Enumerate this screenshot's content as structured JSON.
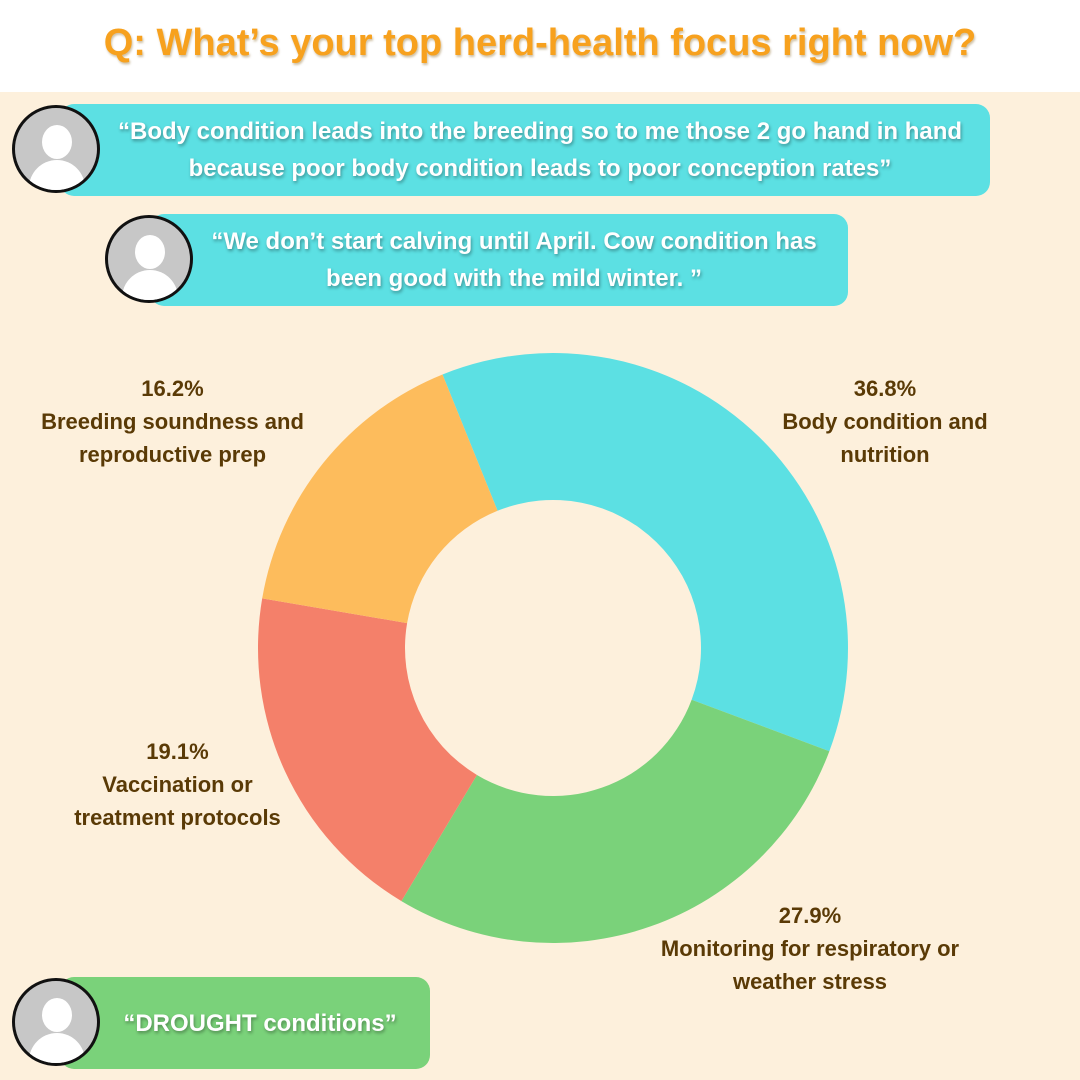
{
  "title": "Q: What’s your top herd-health focus right now?",
  "quotes": [
    "“Body condition leads into the breeding so to me those 2 go hand in hand because poor body condition leads to poor conception rates”",
    "“We don’t start calving until April. Cow condition has been good with the mild winter. ”",
    "“DROUGHT conditions”"
  ],
  "chart_data": {
    "type": "donut",
    "categories": [
      "Body condition and nutrition",
      "Monitoring for respiratory or weather stress",
      "Vaccination or treatment protocols",
      "Breeding soundness and reproductive prep"
    ],
    "values": [
      36.8,
      27.9,
      19.1,
      16.2
    ],
    "value_labels": [
      "36.8%",
      "27.9%",
      "19.1%",
      "16.2%"
    ],
    "colors": [
      "#5ce0e3",
      "#7ad27a",
      "#f4806a",
      "#fdbc5c"
    ]
  }
}
